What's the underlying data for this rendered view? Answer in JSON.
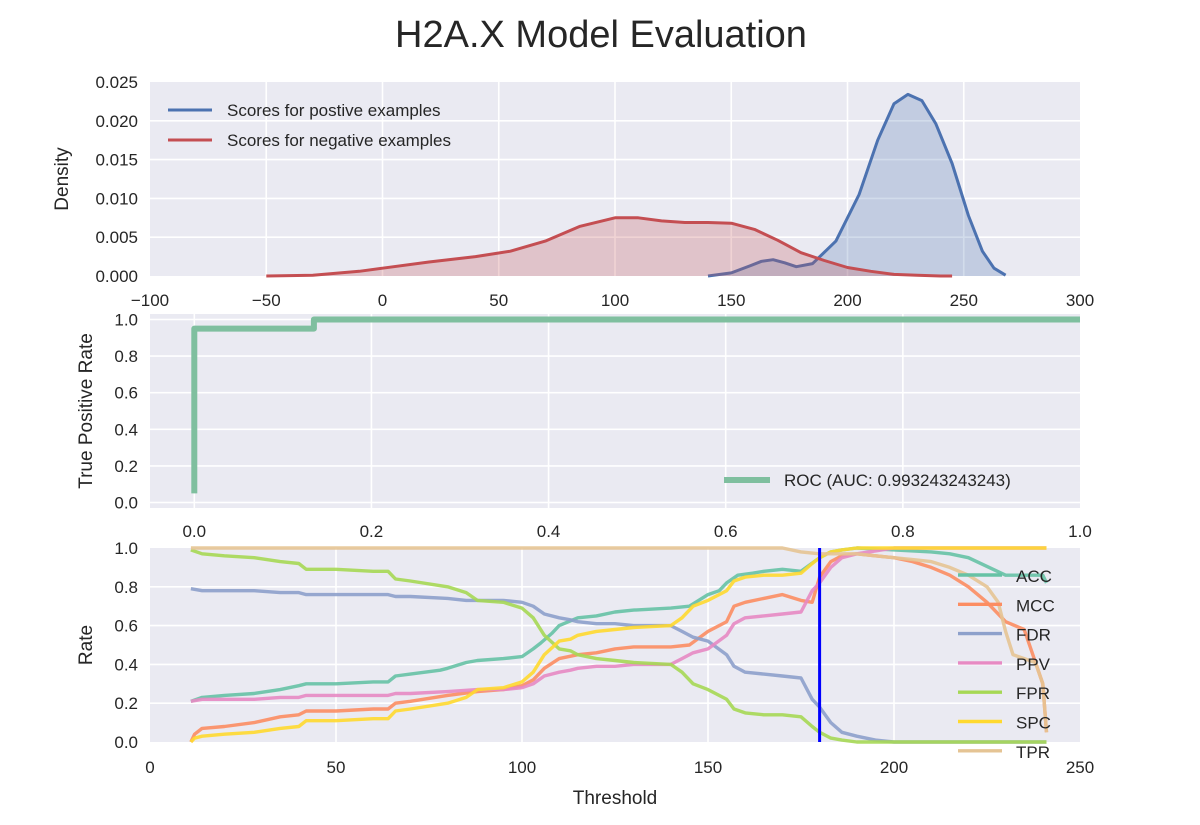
{
  "figure": {
    "title": "H2A.X Model Evaluation"
  },
  "colors": {
    "axes_bg": "#EAEAF2",
    "grid": "#FFFFFF",
    "positive": "#4C72B0",
    "negative": "#C44E52",
    "roc": "#7FBF9F",
    "threshold_line": "#0000FF",
    "ACC": "#66C2A5",
    "MCC": "#FC8D62",
    "FDR": "#8DA0CB",
    "PPV": "#E78AC3",
    "FPR": "#A6D854",
    "SPC": "#FFD92F",
    "TPR": "#E5C494"
  },
  "chart_data": [
    {
      "id": "density",
      "type": "area",
      "title": "",
      "xlabel": "",
      "ylabel": "Density",
      "xlim": [
        -100,
        300
      ],
      "ylim": [
        0,
        0.025
      ],
      "xticks": [
        -100,
        -50,
        0,
        50,
        100,
        150,
        200,
        250,
        300
      ],
      "xtick_labels": [
        "−100",
        "−50",
        "0",
        "50",
        "100",
        "150",
        "200",
        "250",
        "300"
      ],
      "yticks": [
        0,
        0.005,
        0.01,
        0.015,
        0.02,
        0.025
      ],
      "ytick_labels": [
        "0.000",
        "0.005",
        "0.010",
        "0.015",
        "0.020",
        "0.025"
      ],
      "grid": true,
      "legend_position": "top-left",
      "series": [
        {
          "name": "Scores for postive examples",
          "color_key": "positive",
          "x": [
            140,
            150,
            158,
            163,
            168,
            173,
            178,
            185,
            195,
            205,
            213,
            220,
            226,
            232,
            238,
            245,
            252,
            258,
            263,
            268
          ],
          "y": [
            0.0,
            0.0004,
            0.0013,
            0.0019,
            0.0021,
            0.0017,
            0.0012,
            0.0016,
            0.0045,
            0.0105,
            0.0175,
            0.0222,
            0.0234,
            0.0226,
            0.0196,
            0.0145,
            0.0078,
            0.0032,
            0.001,
            0.0001
          ]
        },
        {
          "name": "Scores for negative examples",
          "color_key": "negative",
          "x": [
            -50,
            -30,
            -10,
            0,
            20,
            40,
            55,
            70,
            85,
            100,
            110,
            120,
            130,
            140,
            150,
            160,
            170,
            180,
            190,
            200,
            210,
            220,
            230,
            240,
            245
          ],
          "y": [
            0.0,
            0.0001,
            0.0006,
            0.001,
            0.0018,
            0.0025,
            0.0032,
            0.0045,
            0.0064,
            0.0075,
            0.0075,
            0.0071,
            0.0069,
            0.0069,
            0.0068,
            0.006,
            0.0046,
            0.003,
            0.002,
            0.0011,
            0.0006,
            0.0002,
            0.0001,
            0.0,
            0.0
          ]
        }
      ]
    },
    {
      "id": "roc",
      "type": "line",
      "title": "",
      "xlabel": "",
      "ylabel": "True Positive Rate",
      "xlim": [
        -0.05,
        1.0
      ],
      "ylim": [
        -0.03,
        1.03
      ],
      "xticks": [
        0,
        0.2,
        0.4,
        0.6,
        0.8,
        1.0
      ],
      "xtick_labels": [
        "0.0",
        "0.2",
        "0.4",
        "0.6",
        "0.8",
        "1.0"
      ],
      "yticks": [
        0,
        0.2,
        0.4,
        0.6,
        0.8,
        1.0
      ],
      "ytick_labels": [
        "0.0",
        "0.2",
        "0.4",
        "0.6",
        "0.8",
        "1.0"
      ],
      "grid": true,
      "legend_position": "bottom-right",
      "series": [
        {
          "name": "ROC (AUC: 0.993243243243)",
          "color_key": "roc",
          "x": [
            0.0,
            0.0,
            0.135,
            0.135,
            1.0
          ],
          "y": [
            0.05,
            0.95,
            0.95,
            1.0,
            1.0
          ]
        }
      ]
    },
    {
      "id": "rates",
      "type": "line",
      "title": "",
      "xlabel": "Threshold",
      "ylabel": "Rate",
      "xlim": [
        0,
        250
      ],
      "ylim": [
        0,
        1.0
      ],
      "xticks": [
        0,
        50,
        100,
        150,
        200,
        250
      ],
      "xtick_labels": [
        "0",
        "50",
        "100",
        "150",
        "200",
        "250"
      ],
      "yticks": [
        0,
        0.2,
        0.4,
        0.6,
        0.8,
        1.0
      ],
      "ytick_labels": [
        "0.0",
        "0.2",
        "0.4",
        "0.6",
        "0.8",
        "1.0"
      ],
      "grid": true,
      "legend_position": "right",
      "threshold_marker": 180,
      "series": [
        {
          "name": "ACC",
          "color_key": "ACC",
          "x": [
            11,
            14,
            20,
            28,
            35,
            40,
            42,
            50,
            60,
            64,
            66,
            70,
            78,
            80,
            85,
            88,
            95,
            100,
            103,
            105,
            108,
            110,
            115,
            120,
            125,
            130,
            140,
            145,
            150,
            153,
            155,
            158,
            162,
            165,
            170,
            175,
            180,
            183,
            186,
            190,
            200,
            210,
            215,
            220,
            230,
            240,
            241
          ],
          "y": [
            0.21,
            0.23,
            0.24,
            0.25,
            0.27,
            0.29,
            0.3,
            0.3,
            0.31,
            0.31,
            0.34,
            0.35,
            0.37,
            0.38,
            0.41,
            0.42,
            0.43,
            0.44,
            0.48,
            0.51,
            0.56,
            0.6,
            0.64,
            0.65,
            0.67,
            0.68,
            0.69,
            0.7,
            0.76,
            0.78,
            0.82,
            0.86,
            0.87,
            0.88,
            0.89,
            0.88,
            0.95,
            0.98,
            0.99,
            1.0,
            0.99,
            0.98,
            0.97,
            0.95,
            0.86,
            0.86,
            0.82
          ]
        },
        {
          "name": "MCC",
          "color_key": "MCC",
          "x": [
            11,
            12,
            14,
            20,
            28,
            35,
            40,
            42,
            50,
            60,
            64,
            66,
            70,
            80,
            88,
            95,
            100,
            103,
            106,
            110,
            115,
            120,
            125,
            130,
            140,
            145,
            150,
            155,
            157,
            160,
            165,
            170,
            175,
            178,
            180,
            183,
            186,
            190,
            195,
            200,
            205,
            210,
            215,
            220,
            225,
            230,
            235,
            240,
            241
          ],
          "y": [
            0.0,
            0.04,
            0.07,
            0.08,
            0.1,
            0.13,
            0.14,
            0.16,
            0.16,
            0.17,
            0.17,
            0.2,
            0.21,
            0.24,
            0.26,
            0.27,
            0.29,
            0.32,
            0.38,
            0.43,
            0.45,
            0.46,
            0.48,
            0.49,
            0.49,
            0.5,
            0.57,
            0.62,
            0.7,
            0.72,
            0.74,
            0.76,
            0.73,
            0.72,
            0.85,
            0.93,
            0.96,
            0.97,
            0.96,
            0.95,
            0.93,
            0.9,
            0.86,
            0.8,
            0.72,
            0.62,
            0.58,
            0.3,
            0.05
          ]
        },
        {
          "name": "FDR",
          "color_key": "FDR",
          "x": [
            11,
            14,
            20,
            28,
            35,
            40,
            42,
            50,
            60,
            64,
            66,
            70,
            80,
            85,
            90,
            95,
            100,
            103,
            106,
            110,
            113,
            115,
            120,
            125,
            130,
            140,
            143,
            146,
            150,
            155,
            157,
            160,
            165,
            170,
            175,
            178,
            180,
            183,
            186,
            190,
            195,
            200,
            210,
            220,
            230,
            240,
            241
          ],
          "y": [
            0.79,
            0.78,
            0.78,
            0.78,
            0.77,
            0.77,
            0.76,
            0.76,
            0.76,
            0.76,
            0.75,
            0.75,
            0.74,
            0.73,
            0.73,
            0.73,
            0.72,
            0.7,
            0.66,
            0.64,
            0.63,
            0.62,
            0.61,
            0.61,
            0.6,
            0.6,
            0.57,
            0.54,
            0.52,
            0.45,
            0.39,
            0.36,
            0.35,
            0.34,
            0.33,
            0.22,
            0.18,
            0.1,
            0.05,
            0.03,
            0.01,
            0.0,
            0.0,
            0.0,
            0.0,
            0.0,
            0.0
          ]
        },
        {
          "name": "PPV",
          "color_key": "PPV",
          "x": [
            11,
            14,
            20,
            28,
            35,
            40,
            42,
            50,
            60,
            64,
            66,
            70,
            80,
            88,
            95,
            100,
            103,
            106,
            110,
            113,
            115,
            120,
            125,
            130,
            140,
            143,
            146,
            150,
            155,
            157,
            160,
            165,
            170,
            175,
            178,
            180,
            183,
            186,
            190,
            200,
            210,
            220,
            230,
            240,
            241
          ],
          "y": [
            0.21,
            0.22,
            0.22,
            0.22,
            0.23,
            0.23,
            0.24,
            0.24,
            0.24,
            0.24,
            0.25,
            0.25,
            0.26,
            0.27,
            0.27,
            0.28,
            0.3,
            0.34,
            0.36,
            0.37,
            0.38,
            0.39,
            0.39,
            0.4,
            0.4,
            0.43,
            0.46,
            0.48,
            0.55,
            0.61,
            0.64,
            0.65,
            0.66,
            0.67,
            0.78,
            0.82,
            0.9,
            0.95,
            0.97,
            1.0,
            1.0,
            1.0,
            1.0,
            1.0,
            1.0
          ]
        },
        {
          "name": "FPR",
          "color_key": "FPR",
          "x": [
            11,
            14,
            20,
            28,
            35,
            40,
            42,
            50,
            60,
            64,
            66,
            70,
            80,
            85,
            88,
            95,
            100,
            103,
            106,
            110,
            113,
            115,
            120,
            125,
            130,
            140,
            143,
            146,
            150,
            155,
            157,
            160,
            165,
            170,
            175,
            178,
            180,
            183,
            186,
            190,
            200,
            210,
            220,
            230,
            240,
            241
          ],
          "y": [
            0.99,
            0.97,
            0.96,
            0.95,
            0.93,
            0.92,
            0.89,
            0.89,
            0.88,
            0.88,
            0.84,
            0.83,
            0.8,
            0.77,
            0.73,
            0.72,
            0.69,
            0.64,
            0.55,
            0.48,
            0.47,
            0.45,
            0.43,
            0.42,
            0.41,
            0.4,
            0.36,
            0.3,
            0.27,
            0.22,
            0.17,
            0.15,
            0.14,
            0.14,
            0.13,
            0.08,
            0.05,
            0.02,
            0.01,
            0.0,
            0.0,
            0.0,
            0.0,
            0.0,
            0.0,
            0.0
          ]
        },
        {
          "name": "SPC",
          "color_key": "SPC",
          "x": [
            11,
            12,
            14,
            20,
            28,
            35,
            40,
            42,
            50,
            60,
            64,
            66,
            70,
            80,
            85,
            88,
            95,
            100,
            103,
            106,
            110,
            113,
            115,
            120,
            125,
            130,
            140,
            143,
            146,
            150,
            155,
            157,
            160,
            165,
            170,
            175,
            178,
            180,
            183,
            186,
            190,
            200,
            210,
            220,
            230,
            240,
            241
          ],
          "y": [
            0.0,
            0.02,
            0.03,
            0.04,
            0.05,
            0.07,
            0.08,
            0.11,
            0.11,
            0.12,
            0.12,
            0.16,
            0.17,
            0.2,
            0.23,
            0.27,
            0.28,
            0.31,
            0.36,
            0.45,
            0.52,
            0.53,
            0.55,
            0.57,
            0.58,
            0.59,
            0.6,
            0.64,
            0.7,
            0.73,
            0.78,
            0.83,
            0.85,
            0.86,
            0.86,
            0.87,
            0.92,
            0.95,
            0.98,
            0.99,
            1.0,
            1.0,
            1.0,
            1.0,
            1.0,
            1.0,
            1.0
          ]
        },
        {
          "name": "TPR",
          "color_key": "TPR",
          "x": [
            11,
            150,
            165,
            170,
            175,
            180,
            185,
            190,
            195,
            200,
            205,
            210,
            215,
            220,
            225,
            228,
            230,
            232,
            235,
            238,
            240,
            241
          ],
          "y": [
            1.0,
            1.0,
            1.0,
            1.0,
            0.98,
            0.97,
            0.97,
            0.97,
            0.96,
            0.95,
            0.94,
            0.93,
            0.9,
            0.86,
            0.8,
            0.72,
            0.57,
            0.45,
            0.43,
            0.41,
            0.3,
            0.05
          ]
        }
      ]
    }
  ]
}
